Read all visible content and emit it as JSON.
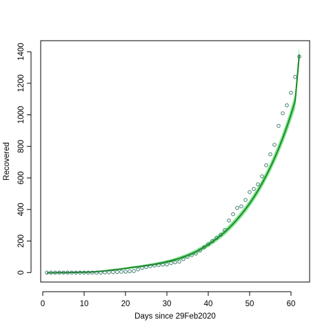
{
  "chart_data": {
    "type": "scatter",
    "title": "",
    "xlabel": "Days since 29Feb2020",
    "ylabel": "Recovered",
    "xlim": [
      -0.5,
      64.5
    ],
    "ylim": [
      -60,
      1470
    ],
    "x_ticks": [
      0,
      10,
      20,
      30,
      40,
      50,
      60
    ],
    "y_ticks": [
      0,
      200,
      400,
      600,
      800,
      1000,
      1200,
      1400
    ],
    "grid": false,
    "legend": "none",
    "colors": {
      "points": "#2e6f62",
      "fit_line": "#1f8a2a",
      "band": "#6fe27c"
    },
    "points": {
      "x": [
        1,
        2,
        3,
        4,
        5,
        6,
        7,
        8,
        9,
        10,
        11,
        12,
        13,
        14,
        15,
        16,
        17,
        18,
        19,
        20,
        21,
        22,
        23,
        24,
        25,
        26,
        27,
        28,
        29,
        30,
        31,
        32,
        33,
        34,
        35,
        36,
        37,
        38,
        39,
        40,
        41,
        42,
        43,
        44,
        45,
        46,
        47,
        48,
        49,
        50,
        51,
        52,
        53,
        54,
        55,
        56,
        57,
        58,
        59,
        60,
        61,
        62
      ],
      "y": [
        0,
        0,
        0,
        0,
        0,
        0,
        0,
        0,
        0,
        0,
        0,
        0,
        0,
        0,
        1,
        2,
        3,
        4,
        5,
        6,
        8,
        10,
        20,
        30,
        35,
        40,
        45,
        48,
        50,
        52,
        60,
        65,
        70,
        85,
        100,
        110,
        120,
        140,
        160,
        180,
        200,
        220,
        240,
        270,
        330,
        370,
        410,
        420,
        460,
        510,
        530,
        560,
        610,
        680,
        750,
        810,
        930,
        1010,
        1060,
        1140,
        1240,
        1370
      ]
    },
    "fit": {
      "x": [
        1,
        2,
        3,
        4,
        5,
        6,
        7,
        8,
        9,
        10,
        11,
        12,
        13,
        14,
        15,
        16,
        17,
        18,
        19,
        20,
        21,
        22,
        23,
        24,
        25,
        26,
        27,
        28,
        29,
        30,
        31,
        32,
        33,
        34,
        35,
        36,
        37,
        38,
        39,
        40,
        41,
        42,
        43,
        44,
        45,
        46,
        47,
        48,
        49,
        50,
        51,
        52,
        53,
        54,
        55,
        56,
        57,
        58,
        59,
        60,
        61,
        62
      ],
      "y": [
        -2,
        -1,
        -1,
        0,
        0,
        0,
        1,
        1,
        2,
        2,
        3,
        4,
        6,
        8,
        11,
        14,
        17,
        20,
        23,
        27,
        30,
        34,
        37,
        41,
        45,
        49,
        53,
        58,
        63,
        69,
        75,
        82,
        90,
        99,
        109,
        120,
        132,
        146,
        161,
        177,
        195,
        214,
        235,
        257,
        282,
        309,
        338,
        369,
        402,
        438,
        477,
        519,
        565,
        614,
        667,
        724,
        786,
        852,
        924,
        1002,
        1087,
        1380
      ]
    },
    "band_halfwidth": {
      "x": [
        1,
        10,
        20,
        30,
        40,
        50,
        55,
        60,
        62
      ],
      "y": [
        4,
        5,
        6,
        10,
        16,
        22,
        28,
        40,
        58
      ]
    }
  }
}
